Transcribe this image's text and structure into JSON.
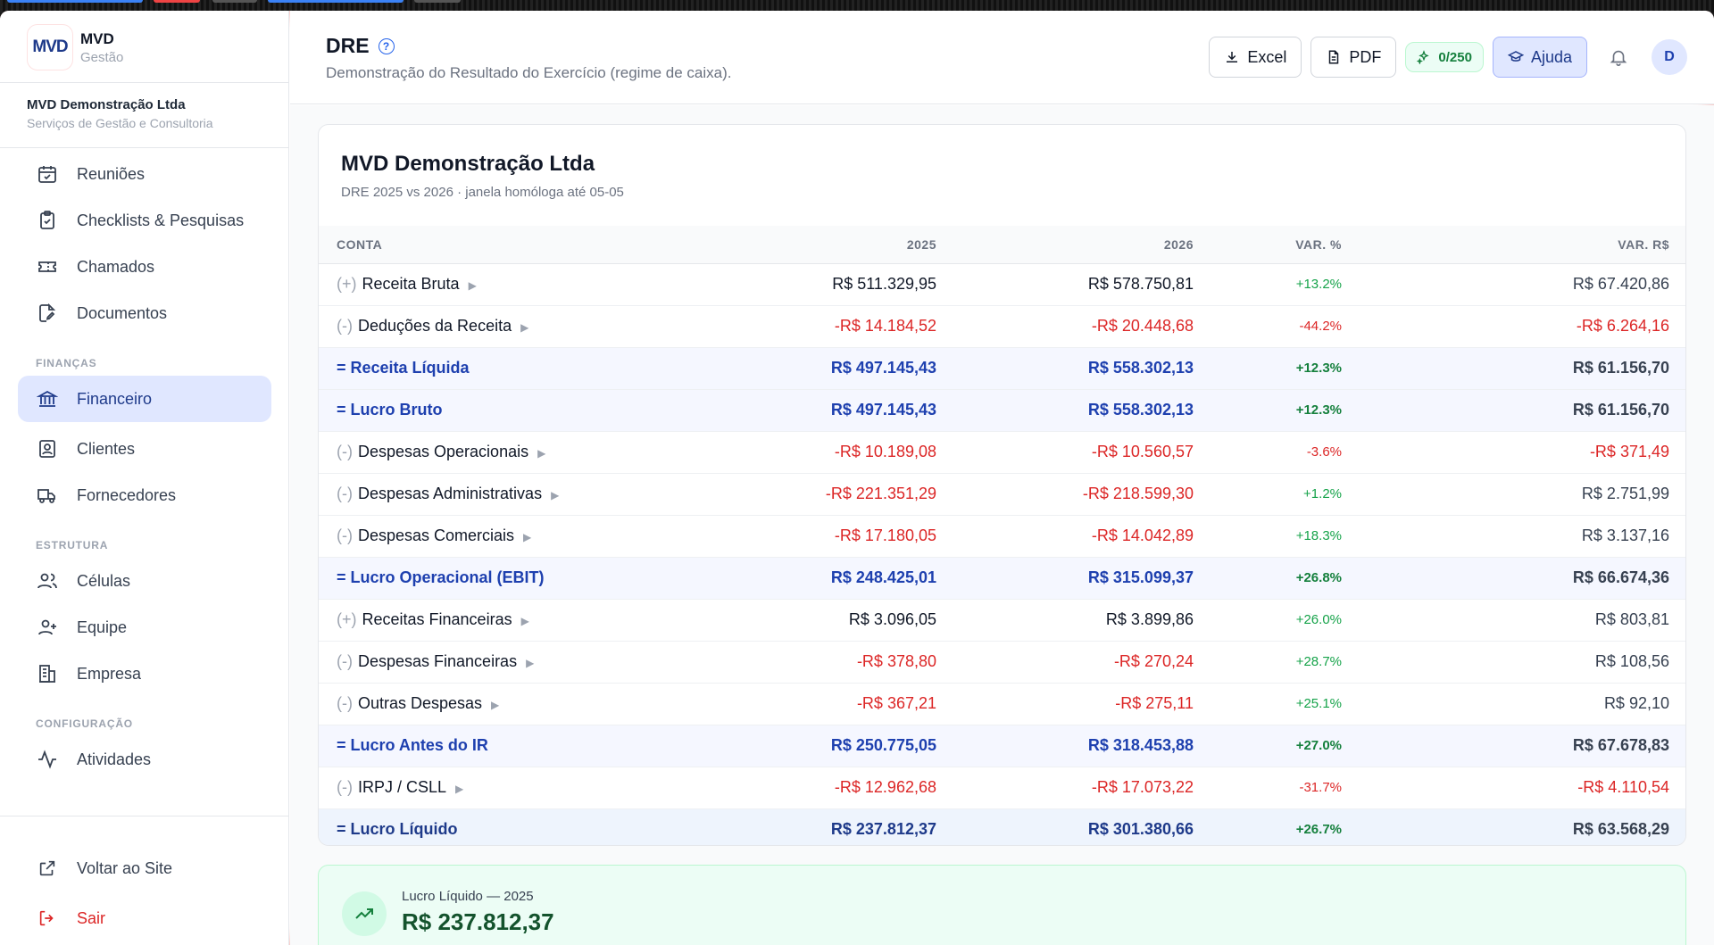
{
  "brand": {
    "logo": "MVD",
    "name": "MVD",
    "subtitle": "Gestão"
  },
  "company": {
    "name": "MVD Demonstração Ltda",
    "subtitle": "Serviços de Gestão e Consultoria"
  },
  "sidebar": {
    "items_top": [
      {
        "label": "Reuniões",
        "icon": "calendar-check-icon"
      },
      {
        "label": "Checklists & Pesquisas",
        "icon": "clipboard-check-icon"
      },
      {
        "label": "Chamados",
        "icon": "ticket-icon"
      },
      {
        "label": "Documentos",
        "icon": "document-edit-icon"
      }
    ],
    "section_finance": "FINANÇAS",
    "items_finance": [
      {
        "label": "Financeiro",
        "icon": "bank-icon",
        "active": true
      },
      {
        "label": "Clientes",
        "icon": "contact-icon"
      },
      {
        "label": "Fornecedores",
        "icon": "truck-icon"
      }
    ],
    "section_structure": "ESTRUTURA",
    "items_structure": [
      {
        "label": "Células",
        "icon": "users-icon"
      },
      {
        "label": "Equipe",
        "icon": "user-plus-icon"
      },
      {
        "label": "Empresa",
        "icon": "building-icon"
      }
    ],
    "section_config": "CONFIGURAÇÃO",
    "items_config": [
      {
        "label": "Atividades",
        "icon": "activity-icon"
      }
    ],
    "back_to_site": "Voltar ao Site",
    "logout": "Sair"
  },
  "header": {
    "title": "DRE",
    "subtitle": "Demonstração do Resultado do Exercício (regime de caixa).",
    "excel_label": "Excel",
    "pdf_label": "PDF",
    "credits": "0/250",
    "help_label": "Ajuda",
    "avatar_initial": "D"
  },
  "card": {
    "title": "MVD Demonstração Ltda",
    "subtitle": "DRE 2025 vs 2026 · janela homóloga até 05-05",
    "columns": [
      "CONTA",
      "2025",
      "2026",
      "VAR. %",
      "VAR. R$"
    ],
    "rows": [
      {
        "type": "line",
        "sign": "(+)",
        "label": "Receita Bruta",
        "v2025": "R$ 511.329,95",
        "v2026": "R$ 578.750,81",
        "pct": "+13.2%",
        "var": "R$ 67.420,86",
        "neg25": false,
        "neg26": false,
        "pctUp": true,
        "varNeg": false
      },
      {
        "type": "line",
        "sign": "(-)",
        "label": "Deduções da Receita",
        "v2025": "-R$ 14.184,52",
        "v2026": "-R$ 20.448,68",
        "pct": "-44.2%",
        "var": "-R$ 6.264,16",
        "neg25": true,
        "neg26": true,
        "pctUp": false,
        "varNeg": true
      },
      {
        "type": "total",
        "label": "= Receita Líquida",
        "v2025": "R$ 497.145,43",
        "v2026": "R$ 558.302,13",
        "pct": "+12.3%",
        "var": "R$ 61.156,70",
        "pctUp": true
      },
      {
        "type": "total",
        "label": "= Lucro Bruto",
        "v2025": "R$ 497.145,43",
        "v2026": "R$ 558.302,13",
        "pct": "+12.3%",
        "var": "R$ 61.156,70",
        "pctUp": true
      },
      {
        "type": "line",
        "sign": "(-)",
        "label": "Despesas Operacionais",
        "v2025": "-R$ 10.189,08",
        "v2026": "-R$ 10.560,57",
        "pct": "-3.6%",
        "var": "-R$ 371,49",
        "neg25": true,
        "neg26": true,
        "pctUp": false,
        "varNeg": true
      },
      {
        "type": "line",
        "sign": "(-)",
        "label": "Despesas Administrativas",
        "v2025": "-R$ 221.351,29",
        "v2026": "-R$ 218.599,30",
        "pct": "+1.2%",
        "var": "R$ 2.751,99",
        "neg25": true,
        "neg26": true,
        "pctUp": true,
        "varNeg": false
      },
      {
        "type": "line",
        "sign": "(-)",
        "label": "Despesas Comerciais",
        "v2025": "-R$ 17.180,05",
        "v2026": "-R$ 14.042,89",
        "pct": "+18.3%",
        "var": "R$ 3.137,16",
        "neg25": true,
        "neg26": true,
        "pctUp": true,
        "varNeg": false
      },
      {
        "type": "total",
        "label": "= Lucro Operacional (EBIT)",
        "v2025": "R$ 248.425,01",
        "v2026": "R$ 315.099,37",
        "pct": "+26.8%",
        "var": "R$ 66.674,36",
        "pctUp": true
      },
      {
        "type": "line",
        "sign": "(+)",
        "label": "Receitas Financeiras",
        "v2025": "R$ 3.096,05",
        "v2026": "R$ 3.899,86",
        "pct": "+26.0%",
        "var": "R$ 803,81",
        "neg25": false,
        "neg26": false,
        "pctUp": true,
        "varNeg": false
      },
      {
        "type": "line",
        "sign": "(-)",
        "label": "Despesas Financeiras",
        "v2025": "-R$ 378,80",
        "v2026": "-R$ 270,24",
        "pct": "+28.7%",
        "var": "R$ 108,56",
        "neg25": true,
        "neg26": true,
        "pctUp": true,
        "varNeg": false
      },
      {
        "type": "line",
        "sign": "(-)",
        "label": "Outras Despesas",
        "v2025": "-R$ 367,21",
        "v2026": "-R$ 275,11",
        "pct": "+25.1%",
        "var": "R$ 92,10",
        "neg25": true,
        "neg26": true,
        "pctUp": true,
        "varNeg": false
      },
      {
        "type": "total",
        "label": "= Lucro Antes do IR",
        "v2025": "R$ 250.775,05",
        "v2026": "R$ 318.453,88",
        "pct": "+27.0%",
        "var": "R$ 67.678,83",
        "pctUp": true
      },
      {
        "type": "line",
        "sign": "(-)",
        "label": "IRPJ / CSLL",
        "v2025": "-R$ 12.962,68",
        "v2026": "-R$ 17.073,22",
        "pct": "-31.7%",
        "var": "-R$ 4.110,54",
        "neg25": true,
        "neg26": true,
        "pctUp": false,
        "varNeg": true
      },
      {
        "type": "final",
        "label": "= Lucro Líquido",
        "v2025": "R$ 237.812,37",
        "v2026": "R$ 301.380,66",
        "pct": "+26.7%",
        "var": "R$ 63.568,29",
        "pctUp": true
      }
    ]
  },
  "summary": {
    "label": "Lucro Líquido — 2025",
    "value": "R$ 237.812,37",
    "icon": "trending-up-icon"
  },
  "colors": {
    "accent": "#1e40af",
    "negative": "#dc2626",
    "positive": "#16a34a",
    "active_bg": "#e0e7ff"
  }
}
